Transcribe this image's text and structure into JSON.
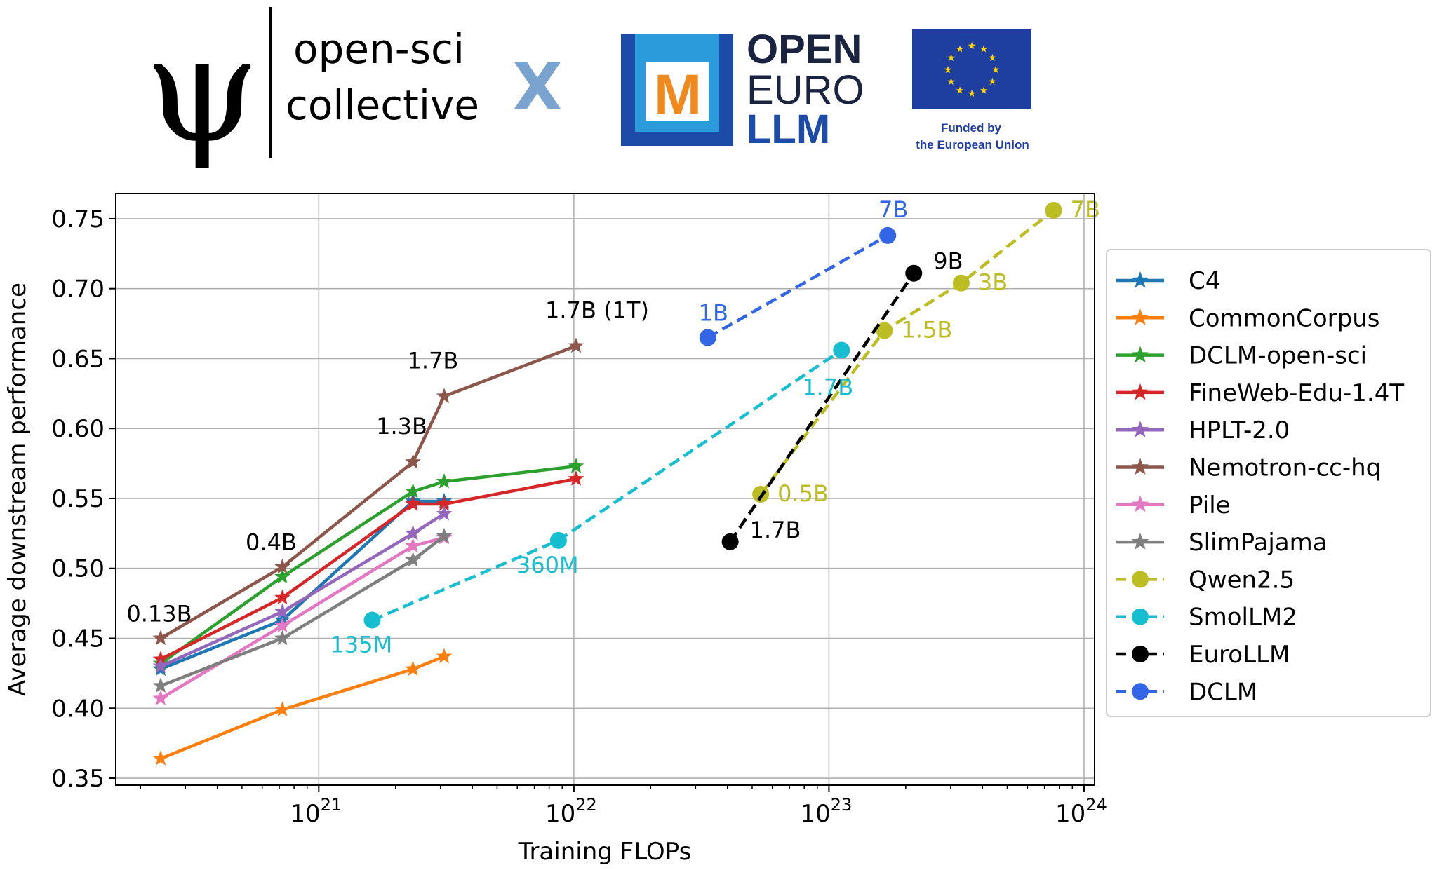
{
  "header": {
    "opensci_line1": "open-sci",
    "opensci_line2": "collective",
    "cross": "X",
    "openeuro_line1": "OPEN",
    "openeuro_line2": "EURO",
    "openeuro_line3": "LLM",
    "openeuro_mark": "M",
    "eu_line1": "Funded by",
    "eu_line2": "the European Union"
  },
  "chart_data": {
    "type": "line",
    "xlabel": "Training FLOPs",
    "ylabel": "Average downstream performance",
    "xscale": "log",
    "xlim": [
      1.6e+20,
      1.1e+24
    ],
    "ylim": [
      0.345,
      0.768
    ],
    "yticks": [
      "0.35",
      "0.40",
      "0.45",
      "0.50",
      "0.55",
      "0.60",
      "0.65",
      "0.70",
      "0.75"
    ],
    "xticks": [
      {
        "value": 1e+21,
        "base": "10",
        "exp": "21"
      },
      {
        "value": 1e+22,
        "base": "10",
        "exp": "22"
      },
      {
        "value": 1e+23,
        "base": "10",
        "exp": "23"
      },
      {
        "value": 1e+24,
        "base": "10",
        "exp": "24"
      }
    ],
    "grid": true,
    "legend_position": "right",
    "series": [
      {
        "name": "C4",
        "color": "#1f77b4",
        "marker": "star",
        "dash": false,
        "x": [
          2.4e+20,
          7.2e+20,
          2.34e+21,
          3.1e+21
        ],
        "y": [
          0.428,
          0.463,
          0.548,
          0.548
        ]
      },
      {
        "name": "CommonCorpus",
        "color": "#ff7f0e",
        "marker": "star",
        "dash": false,
        "x": [
          2.4e+20,
          7.2e+20,
          2.34e+21,
          3.1e+21
        ],
        "y": [
          0.364,
          0.399,
          0.428,
          0.437
        ]
      },
      {
        "name": "DCLM-open-sci",
        "color": "#2ca02c",
        "marker": "star",
        "dash": false,
        "x": [
          2.4e+20,
          7.2e+20,
          2.34e+21,
          3.1e+21,
          1.02e+22
        ],
        "y": [
          0.432,
          0.494,
          0.555,
          0.562,
          0.573
        ]
      },
      {
        "name": "FineWeb-Edu-1.4T",
        "color": "#d62728",
        "marker": "star",
        "dash": false,
        "x": [
          2.4e+20,
          7.2e+20,
          2.34e+21,
          3.1e+21,
          1.02e+22
        ],
        "y": [
          0.435,
          0.479,
          0.546,
          0.546,
          0.564
        ]
      },
      {
        "name": "HPLT-2.0",
        "color": "#9467bd",
        "marker": "star",
        "dash": false,
        "x": [
          2.4e+20,
          7.2e+20,
          2.34e+21,
          3.1e+21
        ],
        "y": [
          0.43,
          0.469,
          0.525,
          0.539
        ]
      },
      {
        "name": "Nemotron-cc-hq",
        "color": "#8c564b",
        "marker": "star",
        "dash": false,
        "x": [
          2.4e+20,
          7.2e+20,
          2.34e+21,
          3.1e+21,
          1.02e+22
        ],
        "y": [
          0.45,
          0.501,
          0.576,
          0.623,
          0.659
        ]
      },
      {
        "name": "Pile",
        "color": "#e377c2",
        "marker": "star",
        "dash": false,
        "x": [
          2.4e+20,
          7.2e+20,
          2.34e+21,
          3.1e+21
        ],
        "y": [
          0.407,
          0.459,
          0.516,
          0.522
        ]
      },
      {
        "name": "SlimPajama",
        "color": "#7f7f7f",
        "marker": "star",
        "dash": false,
        "x": [
          2.4e+20,
          7.2e+20,
          2.34e+21,
          3.1e+21
        ],
        "y": [
          0.416,
          0.45,
          0.506,
          0.523
        ]
      },
      {
        "name": "Qwen2.5",
        "color": "#bcbd22",
        "marker": "circle",
        "dash": true,
        "x": [
          5.4e+22,
          1.65e+23,
          3.3e+23,
          7.6e+23
        ],
        "y": [
          0.553,
          0.67,
          0.704,
          0.756
        ]
      },
      {
        "name": "SmolLM2",
        "color": "#17becf",
        "marker": "circle",
        "dash": true,
        "x": [
          1.62e+21,
          8.7e+21,
          1.12e+23
        ],
        "y": [
          0.463,
          0.52,
          0.656
        ]
      },
      {
        "name": "EuroLLM",
        "color": "#000000",
        "marker": "circle",
        "dash": true,
        "x": [
          4.1e+22,
          2.15e+23
        ],
        "y": [
          0.519,
          0.711
        ]
      },
      {
        "name": "DCLM",
        "color": "#3366e6",
        "marker": "circle",
        "dash": true,
        "x": [
          3.35e+22,
          1.7e+23
        ],
        "y": [
          0.665,
          0.738
        ]
      }
    ],
    "annotations": [
      {
        "text": "0.13B",
        "x": 2.4e+20,
        "y": 0.45,
        "dx": -2,
        "dy": -24,
        "anchor": "middle",
        "color": "#000000"
      },
      {
        "text": "0.4B",
        "x": 7.2e+20,
        "y": 0.501,
        "dx": -16,
        "dy": -24,
        "anchor": "middle",
        "color": "#000000"
      },
      {
        "text": "1.3B",
        "x": 2.34e+21,
        "y": 0.576,
        "dx": -16,
        "dy": -40,
        "anchor": "middle",
        "color": "#000000"
      },
      {
        "text": "1.7B",
        "x": 3.1e+21,
        "y": 0.623,
        "dx": -16,
        "dy": -40,
        "anchor": "middle",
        "color": "#000000"
      },
      {
        "text": "1.7B (1T)",
        "x": 1.02e+22,
        "y": 0.659,
        "dx": 30,
        "dy": -40,
        "anchor": "middle",
        "color": "#000000"
      },
      {
        "text": "1B",
        "x": 3.35e+22,
        "y": 0.665,
        "dx": 8,
        "dy": -24,
        "anchor": "middle",
        "color": "#3366e6"
      },
      {
        "text": "7B",
        "x": 1.7e+23,
        "y": 0.738,
        "dx": 8,
        "dy": -26,
        "anchor": "middle",
        "color": "#3366e6"
      },
      {
        "text": "9B",
        "x": 2.15e+23,
        "y": 0.711,
        "dx": 28,
        "dy": -6,
        "anchor": "start",
        "color": "#000000"
      },
      {
        "text": "1.7B",
        "x": 4.1e+22,
        "y": 0.519,
        "dx": 28,
        "dy": -6,
        "anchor": "start",
        "color": "#000000"
      },
      {
        "text": "360M",
        "x": 8.7e+21,
        "y": 0.52,
        "dx": -60,
        "dy": 46,
        "anchor": "start",
        "color": "#17becf"
      },
      {
        "text": "135M",
        "x": 1.62e+21,
        "y": 0.463,
        "dx": -60,
        "dy": 46,
        "anchor": "start",
        "color": "#17becf"
      },
      {
        "text": "1.7B",
        "x": 1.12e+23,
        "y": 0.656,
        "dx": -56,
        "dy": 64,
        "anchor": "start",
        "color": "#17becf"
      },
      {
        "text": "0.5B",
        "x": 5.4e+22,
        "y": 0.553,
        "dx": 24,
        "dy": 10,
        "anchor": "start",
        "color": "#bcbd22"
      },
      {
        "text": "1.5B",
        "x": 1.65e+23,
        "y": 0.67,
        "dx": 24,
        "dy": 10,
        "anchor": "start",
        "color": "#bcbd22"
      },
      {
        "text": "3B",
        "x": 3.3e+23,
        "y": 0.704,
        "dx": 24,
        "dy": 10,
        "anchor": "start",
        "color": "#bcbd22"
      },
      {
        "text": "7B",
        "x": 7.6e+23,
        "y": 0.756,
        "dx": 24,
        "dy": 10,
        "anchor": "start",
        "color": "#bcbd22"
      }
    ]
  }
}
